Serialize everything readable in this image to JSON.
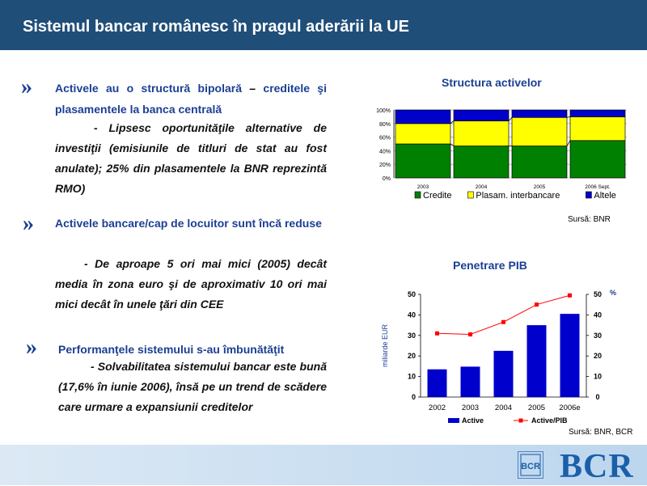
{
  "header": {
    "title": "Sistemul bancar românesc în pragul aderării la UE"
  },
  "bullets": [
    {
      "marker": "»",
      "head_a": "Activele au o structură bipolară",
      "head_dash": " – ",
      "head_b": "creditele şi plasamentele la banca centrală",
      "body": "- Lipsesc oportunităţile alternative de investiţii (emisiunile de titluri de stat au fost anulate); 25% din plasamentele la BNR reprezintă RMO)"
    },
    {
      "marker": "»",
      "head": "Activele bancare/cap de locuitor sunt încă reduse",
      "body": "- De aproape 5 ori mai mici (2005) decât media în zona euro şi de aproximativ 10 ori mai mici decât în unele ţări din CEE"
    },
    {
      "marker": "»",
      "head": "Performanţele sistemului s-au îmbunătăţit",
      "body": "- Solvabilitatea sistemului bancar este bună (17,6% în iunie 2006), însă pe un trend de scădere care urmare a expansiunii creditelor"
    }
  ],
  "chart_data": [
    {
      "type": "bar",
      "stacked": true,
      "title": "Structura activelor",
      "categories": [
        "2003",
        "2004",
        "2005",
        "2006 Sept."
      ],
      "y_ticks": [
        "0%",
        "20%",
        "40%",
        "60%",
        "80%",
        "100%"
      ],
      "ylim": [
        0,
        100
      ],
      "series": [
        {
          "name": "Credite",
          "color": "#008000",
          "values": [
            50,
            47,
            47,
            55
          ]
        },
        {
          "name": "Plasam. interbancare",
          "color": "#ffff00",
          "values": [
            30,
            37,
            42,
            35
          ]
        },
        {
          "name": "Altele",
          "color": "#0000cc",
          "values": [
            20,
            16,
            11,
            10
          ]
        }
      ],
      "grid": true,
      "legend": "bottom",
      "source": "Sursă: BNR"
    },
    {
      "type": "bar+line",
      "title": "Penetrare PIB",
      "categories": [
        "2002",
        "2003",
        "2004",
        "2005",
        "2006e"
      ],
      "ylabel_left": "miliarde EUR",
      "ylim_left": [
        0,
        50
      ],
      "y_ticks_left": [
        "0",
        "10",
        "20",
        "30",
        "40",
        "50"
      ],
      "ylim_right": [
        0,
        50
      ],
      "y_ticks_right": [
        "0",
        "10",
        "20",
        "30",
        "40",
        "50"
      ],
      "right_unit": "%",
      "series": [
        {
          "name": "Active",
          "kind": "bar",
          "axis": "left",
          "color": "#0000cc",
          "values": [
            13.5,
            14.8,
            22.5,
            35,
            40.5
          ]
        },
        {
          "name": "Active/PIB",
          "kind": "line",
          "axis": "right",
          "color": "#ff0000",
          "values": [
            31,
            30.5,
            36.5,
            45,
            49.5
          ]
        }
      ],
      "legend": "bottom",
      "source": "Sursă: BNR, BCR"
    }
  ],
  "footer": {
    "logo_text": "BCR",
    "logo_mark": "BCR"
  }
}
